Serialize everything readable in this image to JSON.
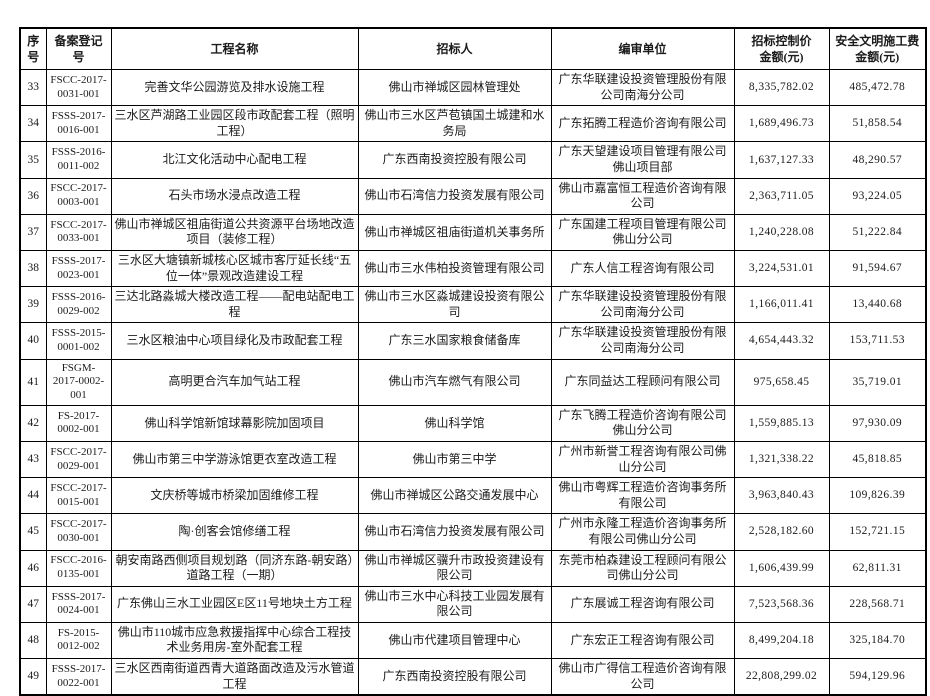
{
  "table": {
    "columns": [
      {
        "key": "serial",
        "label": "序号"
      },
      {
        "key": "reg_no",
        "label": "备案登记号"
      },
      {
        "key": "project_name",
        "label": "工程名称"
      },
      {
        "key": "tenderer",
        "label": "招标人"
      },
      {
        "key": "review_unit",
        "label": "编审单位"
      },
      {
        "key": "control_price",
        "label": "招标控制价\n金额(元)"
      },
      {
        "key": "safety_fee",
        "label": "安全文明施工费\n金额(元)"
      }
    ],
    "rows": [
      {
        "serial": "33",
        "reg_no": "FSCC-2017-0031-001",
        "project_name": "完善文华公园游览及排水设施工程",
        "tenderer": "佛山市禅城区园林管理处",
        "review_unit": "广东华联建设投资管理股份有限公司南海分公司",
        "control_price": "8,335,782.02",
        "safety_fee": "485,472.78"
      },
      {
        "serial": "34",
        "reg_no": "FSSS-2017-0016-001",
        "project_name": "三水区芦湖路工业园区段市政配套工程（照明工程）",
        "tenderer": "佛山市三水区芦苞镇国土城建和水务局",
        "review_unit": "广东拓腾工程造价咨询有限公司",
        "control_price": "1,689,496.73",
        "safety_fee": "51,858.54"
      },
      {
        "serial": "35",
        "reg_no": "FSSS-2016-0011-002",
        "project_name": "北江文化活动中心配电工程",
        "tenderer": "广东西南投资控股有限公司",
        "review_unit": "广东天望建设项目管理有限公司佛山项目部",
        "control_price": "1,637,127.33",
        "safety_fee": "48,290.57"
      },
      {
        "serial": "36",
        "reg_no": "FSCC-2017-0003-001",
        "project_name": "石头市场水浸点改造工程",
        "tenderer": "佛山市石湾信力投资发展有限公司",
        "review_unit": "佛山市嘉富恒工程造价咨询有限公司",
        "control_price": "2,363,711.05",
        "safety_fee": "93,224.05"
      },
      {
        "serial": "37",
        "reg_no": "FSCC-2017-0033-001",
        "project_name": "佛山市禅城区祖庙街道公共资源平台场地改造项目（装修工程）",
        "tenderer": "佛山市禅城区祖庙街道机关事务所",
        "review_unit": "广东国建工程项目管理有限公司佛山分公司",
        "control_price": "1,240,228.08",
        "safety_fee": "51,222.84"
      },
      {
        "serial": "38",
        "reg_no": "FSSS-2017-0023-001",
        "project_name": "三水区大塘镇新城核心区城市客厅延长线“五位一体”景观改造建设工程",
        "tenderer": "佛山市三水伟柏投资管理有限公司",
        "review_unit": "广东人信工程咨询有限公司",
        "control_price": "3,224,531.01",
        "safety_fee": "91,594.67"
      },
      {
        "serial": "39",
        "reg_no": "FSSS-2016-0029-002",
        "project_name": "三达北路淼城大楼改造工程——配电站配电工程",
        "tenderer": "佛山市三水区淼城建设投资有限公司",
        "review_unit": "广东华联建设投资管理股份有限公司南海分公司",
        "control_price": "1,166,011.41",
        "safety_fee": "13,440.68"
      },
      {
        "serial": "40",
        "reg_no": "FSSS-2015-0001-002",
        "project_name": "三水区粮油中心项目绿化及市政配套工程",
        "tenderer": "广东三水国家粮食储备库",
        "review_unit": "广东华联建设投资管理股份有限公司南海分公司",
        "control_price": "4,654,443.32",
        "safety_fee": "153,711.53"
      },
      {
        "serial": "41",
        "reg_no": "FSGM-2017-0002-001",
        "project_name": "高明更合汽车加气站工程",
        "tenderer": "佛山市汽车燃气有限公司",
        "review_unit": "广东同益达工程顾问有限公司",
        "control_price": "975,658.45",
        "safety_fee": "35,719.01"
      },
      {
        "serial": "42",
        "reg_no": "FS-2017-0002-001",
        "project_name": "佛山科学馆新馆球幕影院加固项目",
        "tenderer": "佛山科学馆",
        "review_unit": "广东飞腾工程造价咨询有限公司佛山分公司",
        "control_price": "1,559,885.13",
        "safety_fee": "97,930.09"
      },
      {
        "serial": "43",
        "reg_no": "FSCC-2017-0029-001",
        "project_name": "佛山市第三中学游泳馆更衣室改造工程",
        "tenderer": "佛山市第三中学",
        "review_unit": "广州市新誉工程咨询有限公司佛山分公司",
        "control_price": "1,321,338.22",
        "safety_fee": "45,818.85"
      },
      {
        "serial": "44",
        "reg_no": "FSCC-2017-0015-001",
        "project_name": "文庆桥等城市桥梁加固维修工程",
        "tenderer": "佛山市禅城区公路交通发展中心",
        "review_unit": "佛山市粤辉工程造价咨询事务所有限公司",
        "control_price": "3,963,840.43",
        "safety_fee": "109,826.39"
      },
      {
        "serial": "45",
        "reg_no": "FSCC-2017-0030-001",
        "project_name": "陶·创客会馆修缮工程",
        "tenderer": "佛山市石湾信力投资发展有限公司",
        "review_unit": "广州市永隆工程造价咨询事务所有限公司佛山分公司",
        "control_price": "2,528,182.60",
        "safety_fee": "152,721.15"
      },
      {
        "serial": "46",
        "reg_no": "FSCC-2016-0135-001",
        "project_name": "朝安南路西侧项目规划路（同济东路-朝安路）道路工程（一期）",
        "tenderer": "佛山市禅城区骥升市政投资建设有限公司",
        "review_unit": "东莞市柏森建设工程顾问有限公司佛山分公司",
        "control_price": "1,606,439.99",
        "safety_fee": "62,811.31"
      },
      {
        "serial": "47",
        "reg_no": "FSSS-2017-0024-001",
        "project_name": "广东佛山三水工业园区E区11号地块土方工程",
        "tenderer": "佛山市三水中心科技工业园发展有限公司",
        "review_unit": "广东展诚工程咨询有限公司",
        "control_price": "7,523,568.36",
        "safety_fee": "228,568.71"
      },
      {
        "serial": "48",
        "reg_no": "FS-2015-0012-002",
        "project_name": "佛山市110城市应急救援指挥中心综合工程技术业务用房-室外配套工程",
        "tenderer": "佛山市代建项目管理中心",
        "review_unit": "广东宏正工程咨询有限公司",
        "control_price": "8,499,204.18",
        "safety_fee": "325,184.70"
      },
      {
        "serial": "49",
        "reg_no": "FSSS-2017-0022-001",
        "project_name": "三水区西南街道西青大道路面改造及污水管道工程",
        "tenderer": "广东西南投资控股有限公司",
        "review_unit": "佛山市广得信工程造价咨询有限公司",
        "control_price": "22,808,299.02",
        "safety_fee": "594,129.96"
      }
    ]
  },
  "colors": {
    "border": "#000000",
    "text": "#1b1b1b",
    "background": "#ffffff"
  }
}
